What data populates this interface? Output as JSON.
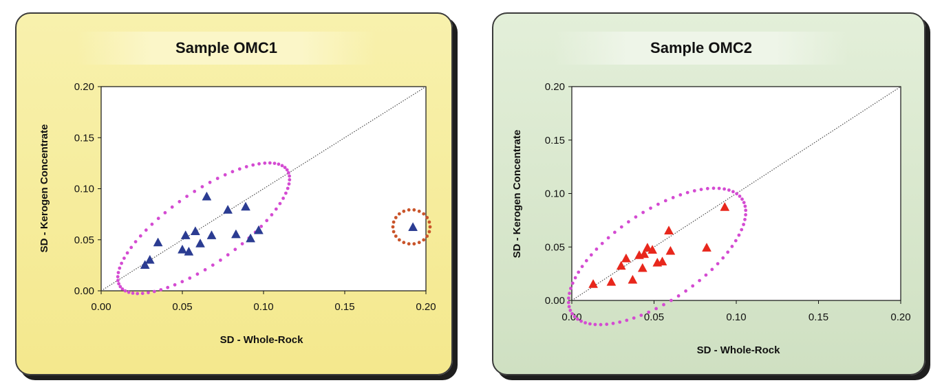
{
  "chart_data": [
    {
      "type": "scatter",
      "title": "Sample OMC1",
      "xlabel": "SD - Whole-Rock",
      "ylabel": "SD - Kerogen Concentrate",
      "xlim": [
        0,
        0.2
      ],
      "ylim": [
        0,
        0.2
      ],
      "xticks": [
        "0.00",
        "0.05",
        "0.10",
        "0.15",
        "0.20"
      ],
      "yticks": [
        "0.00",
        "0.05",
        "0.10",
        "0.15",
        "0.20"
      ],
      "grid": false,
      "marker": "triangle",
      "marker_color": "#2b3c92",
      "reference_line": "y = x (dotted)",
      "series": [
        {
          "points": [
            [
              0.027,
              0.025
            ],
            [
              0.03,
              0.03
            ],
            [
              0.035,
              0.047
            ],
            [
              0.05,
              0.04
            ],
            [
              0.052,
              0.054
            ],
            [
              0.054,
              0.038
            ],
            [
              0.058,
              0.058
            ],
            [
              0.061,
              0.046
            ],
            [
              0.065,
              0.092
            ],
            [
              0.068,
              0.054
            ],
            [
              0.078,
              0.079
            ],
            [
              0.083,
              0.055
            ],
            [
              0.089,
              0.082
            ],
            [
              0.092,
              0.051
            ],
            [
              0.097,
              0.059
            ],
            [
              0.192,
              0.062
            ]
          ]
        }
      ],
      "annotations": [
        {
          "shape": "dotted ellipse",
          "color": "#d44bd2",
          "encloses": "main cluster"
        },
        {
          "shape": "dotted circle",
          "color": "#c9542a",
          "encloses": "outlier at 0.192"
        }
      ]
    },
    {
      "type": "scatter",
      "title": "Sample OMC2",
      "xlabel": "SD - Whole-Rock",
      "ylabel": "SD - Kerogen Concentrate",
      "xlim": [
        0,
        0.2
      ],
      "ylim": [
        0,
        0.2
      ],
      "xticks": [
        "0.00",
        "0.05",
        "0.10",
        "0.15",
        "0.20"
      ],
      "yticks": [
        "0.00",
        "0.05",
        "0.10",
        "0.15",
        "0.20"
      ],
      "grid": false,
      "marker": "triangle",
      "marker_color": "#e8271c",
      "reference_line": "y = x (dotted)",
      "series": [
        {
          "points": [
            [
              0.013,
              0.015
            ],
            [
              0.024,
              0.017
            ],
            [
              0.03,
              0.032
            ],
            [
              0.033,
              0.039
            ],
            [
              0.037,
              0.019
            ],
            [
              0.041,
              0.042
            ],
            [
              0.043,
              0.03
            ],
            [
              0.044,
              0.043
            ],
            [
              0.046,
              0.049
            ],
            [
              0.049,
              0.047
            ],
            [
              0.052,
              0.035
            ],
            [
              0.055,
              0.036
            ],
            [
              0.059,
              0.065
            ],
            [
              0.06,
              0.046
            ],
            [
              0.082,
              0.049
            ],
            [
              0.093,
              0.087
            ]
          ]
        }
      ],
      "annotations": [
        {
          "shape": "dotted ellipse",
          "color": "#d44bd2",
          "encloses": "all points"
        }
      ]
    }
  ]
}
